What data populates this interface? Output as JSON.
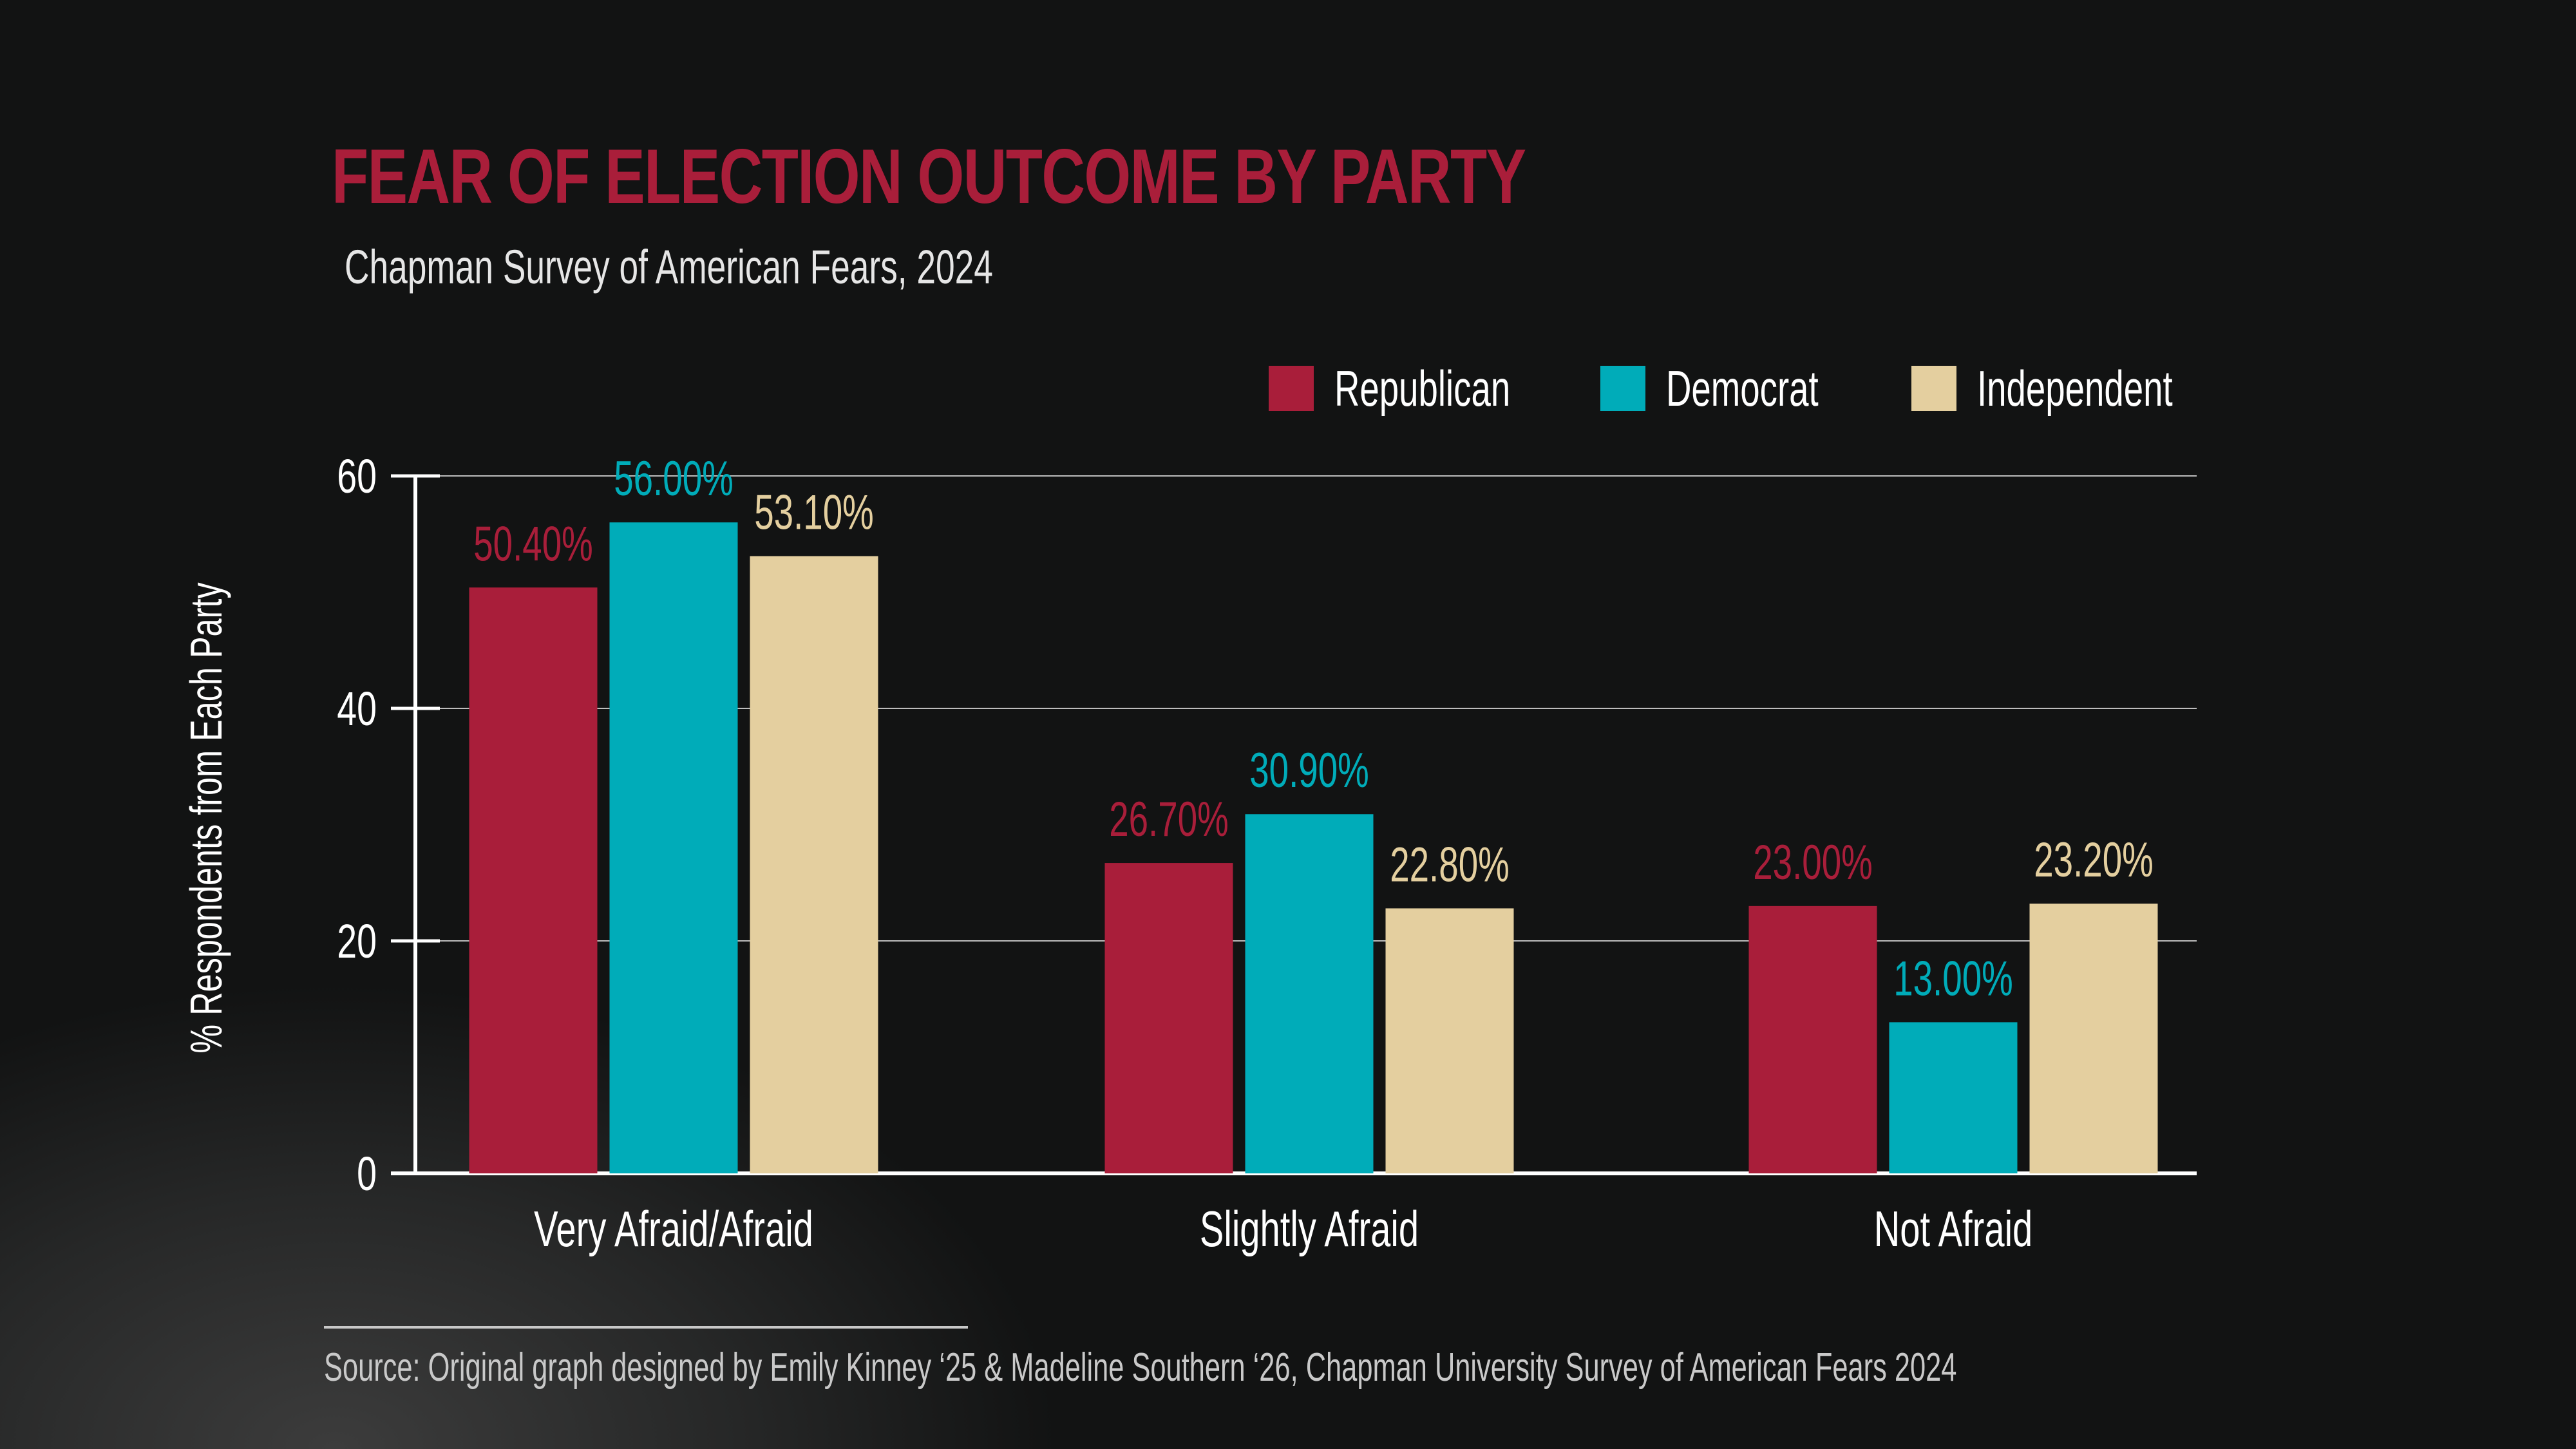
{
  "chart_data": {
    "type": "bar",
    "title": "FEAR OF ELECTION OUTCOME BY PARTY",
    "subtitle": "Chapman Survey of American Fears, 2024",
    "xlabel": "",
    "ylabel": "% Respondents from Each Party",
    "ylim": [
      0,
      60
    ],
    "yticks": [
      0,
      20,
      40,
      60
    ],
    "grid": true,
    "legend_position": "top-right",
    "categories": [
      "Very Afraid/Afraid",
      "Slightly Afraid",
      "Not Afraid"
    ],
    "series": [
      {
        "name": "Republican",
        "color": "#a91e3a",
        "values": [
          50.4,
          26.7,
          23.0
        ],
        "labels": [
          "50.40%",
          "26.70%",
          "23.00%"
        ]
      },
      {
        "name": "Democrat",
        "color": "#00acb9",
        "values": [
          56.0,
          30.9,
          13.0
        ],
        "labels": [
          "56.00%",
          "30.90%",
          "13.00%"
        ]
      },
      {
        "name": "Independent",
        "color": "#e4cf9f",
        "values": [
          53.1,
          22.8,
          23.2
        ],
        "labels": [
          "53.10%",
          "22.80%",
          "23.20%"
        ]
      }
    ],
    "source": "Source: Original graph designed by Emily Kinney ‘25 & Madeline Southern ‘26, Chapman University Survey of American Fears 2024"
  }
}
